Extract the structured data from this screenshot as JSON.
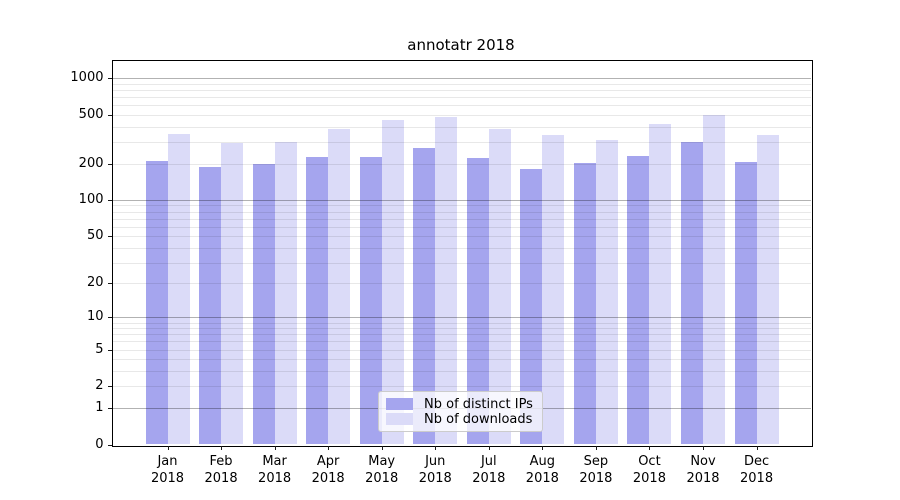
{
  "chart_data": {
    "type": "bar",
    "title": "annotatr 2018",
    "xlabel": "",
    "ylabel": "",
    "y_scale": "log1p",
    "ylim": [
      0,
      1480
    ],
    "grid": true,
    "legend_position": "lower center",
    "categories": [
      "Jan",
      "Feb",
      "Mar",
      "Apr",
      "May",
      "Jun",
      "Jul",
      "Aug",
      "Sep",
      "Oct",
      "Nov",
      "Dec"
    ],
    "x_year_label": "2018",
    "y_tick_labels": [
      "1000",
      "500",
      "200",
      "100",
      "50",
      "20",
      "10",
      "5",
      "2",
      "1",
      "0"
    ],
    "y_tick_values": [
      1000,
      500,
      200,
      100,
      50,
      20,
      10,
      5,
      2,
      1,
      0
    ],
    "major_gridline_values": [
      1,
      10,
      100,
      1000
    ],
    "series": [
      {
        "name": "Nb of distinct IPs",
        "color": "#a5a5ee",
        "values": [
          209,
          186,
          199,
          225,
          228,
          267,
          221,
          180,
          201,
          231,
          302,
          207
        ]
      },
      {
        "name": "Nb of downloads",
        "color": "#dbdbf8",
        "values": [
          350,
          297,
          301,
          387,
          456,
          480,
          385,
          345,
          314,
          420,
          505,
          346
        ]
      }
    ],
    "colors": {
      "major_gridline": "#b2b2b2",
      "minor_gridline": "#e8e8e8",
      "spine": "#000000",
      "legend_border": "#cccccc"
    }
  }
}
